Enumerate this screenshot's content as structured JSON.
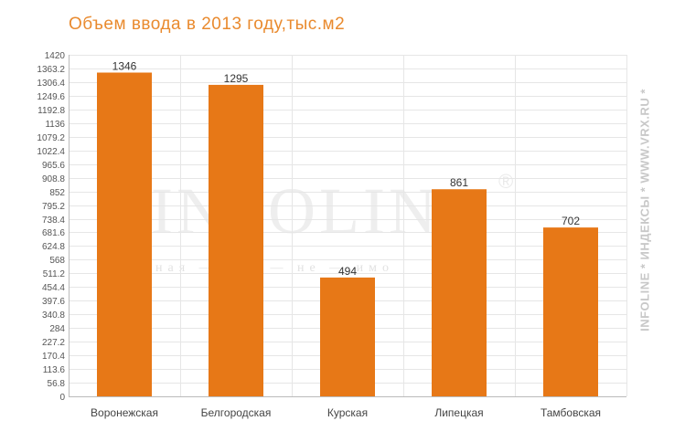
{
  "chart_data": {
    "type": "bar",
    "title": "Объем ввода в 2013 году,тыс.м2",
    "categories": [
      "Воронежская",
      "Белгородская",
      "Курская",
      "Липецкая",
      "Тамбовская"
    ],
    "values": [
      1346,
      1295,
      494,
      861,
      702
    ],
    "data_labels": [
      "1346",
      "1295",
      "494",
      "861",
      "702"
    ],
    "ylim": [
      0,
      1420
    ],
    "yticks": [
      "0",
      "56.8",
      "113.6",
      "170.4",
      "227.2",
      "284",
      "340.8",
      "397.6",
      "454.4",
      "511.2",
      "568",
      "624.8",
      "681.6",
      "738.4",
      "795.2",
      "852",
      "908.8",
      "965.6",
      "1022.4",
      "1079.2",
      "1136",
      "1192.8",
      "1249.6",
      "1306.4",
      "1363.2",
      "1420"
    ],
    "grid": true,
    "bar_color": "#E77817",
    "title_color": "#E98A2E"
  },
  "watermark": {
    "logo_text": "INFOLINE",
    "registered_mark": "®",
    "tagline": "ная — дан — не — имо"
  },
  "side_text": "INFOLINE * ИНДЕКСЫ * WWW.VRX.RU *"
}
